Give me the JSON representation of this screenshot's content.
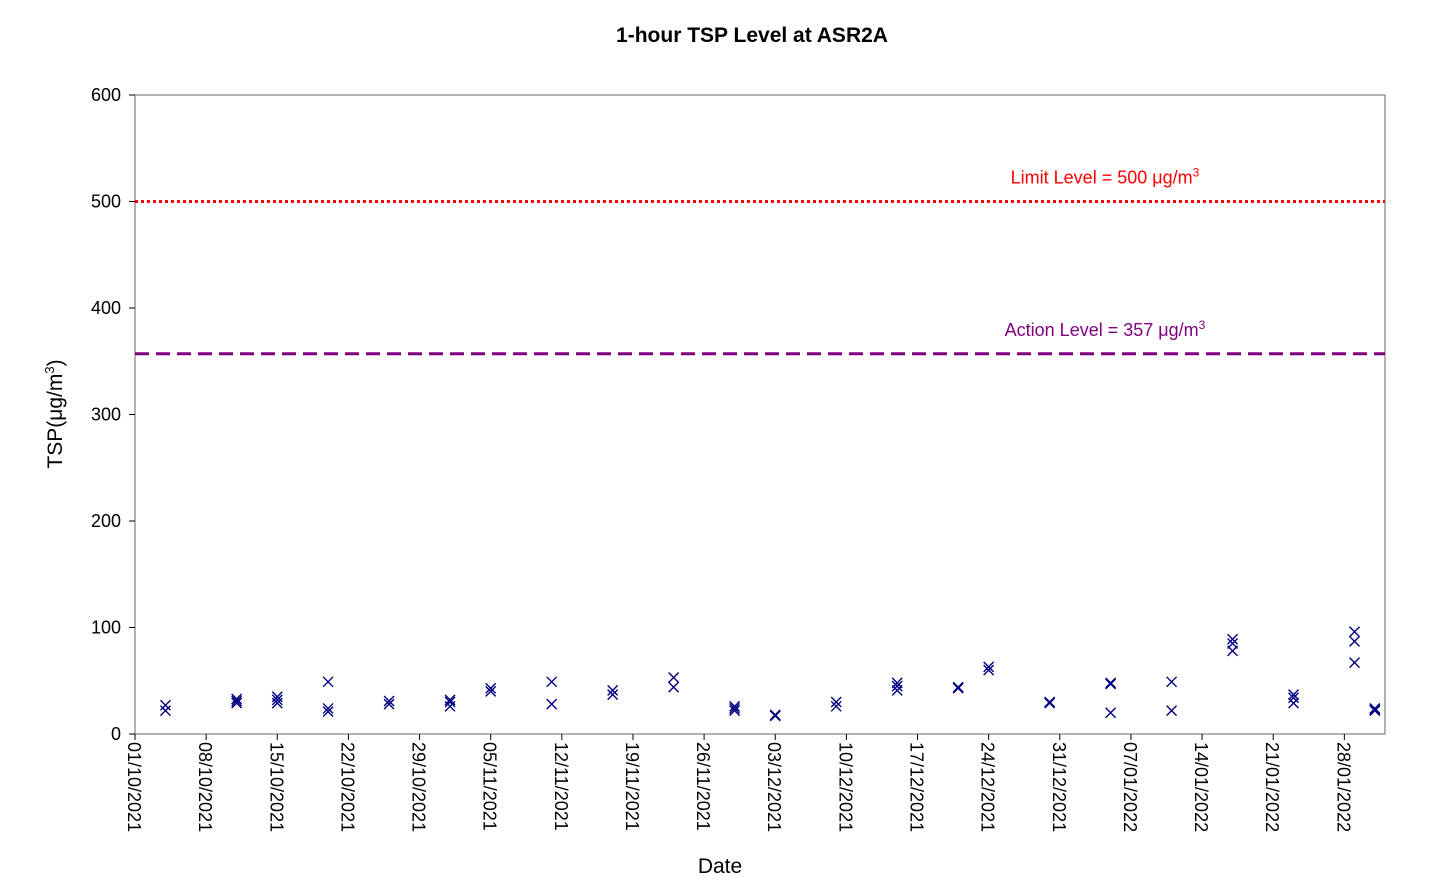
{
  "chart_data": {
    "type": "scatter",
    "title": "1-hour TSP Level at ASR2A",
    "xlabel": "Date",
    "ylabel_main": "TSP(",
    "ylabel_unit": "μg/m",
    "ylabel_sup": "3",
    "ylabel_close": ")",
    "xlim": [
      "2021-10-01",
      "2022-01-31"
    ],
    "ylim": [
      0,
      600
    ],
    "yticks": [
      0,
      100,
      200,
      300,
      400,
      500,
      600
    ],
    "xticks": [
      "01/10/2021",
      "08/10/2021",
      "15/10/2021",
      "22/10/2021",
      "29/10/2021",
      "05/11/2021",
      "12/11/2021",
      "19/11/2021",
      "26/11/2021",
      "03/12/2021",
      "10/12/2021",
      "17/12/2021",
      "24/12/2021",
      "31/12/2021",
      "07/01/2022",
      "14/01/2022",
      "21/01/2022",
      "28/01/2022"
    ],
    "grid": false,
    "reference_lines": [
      {
        "name": "limit",
        "label": "Limit Level = 500 ",
        "unit": "μg/m",
        "sup": "3",
        "value": 500,
        "color": "#ff0000",
        "style": "dotted"
      },
      {
        "name": "action",
        "label": "Action Level = 357 ",
        "unit": "μg/m",
        "sup": "3",
        "value": 357,
        "color": "#800080",
        "style": "dashed"
      }
    ],
    "marker_color": "#000080",
    "points": [
      [
        "2021-10-04",
        27
      ],
      [
        "2021-10-04",
        22
      ],
      [
        "2021-10-11",
        33
      ],
      [
        "2021-10-11",
        31
      ],
      [
        "2021-10-11",
        29
      ],
      [
        "2021-10-15",
        35
      ],
      [
        "2021-10-15",
        32
      ],
      [
        "2021-10-15",
        29
      ],
      [
        "2021-10-20",
        49
      ],
      [
        "2021-10-20",
        24
      ],
      [
        "2021-10-20",
        21
      ],
      [
        "2021-10-26",
        31
      ],
      [
        "2021-10-26",
        28
      ],
      [
        "2021-11-01",
        32
      ],
      [
        "2021-11-01",
        30
      ],
      [
        "2021-11-01",
        26
      ],
      [
        "2021-11-05",
        43
      ],
      [
        "2021-11-05",
        40
      ],
      [
        "2021-11-11",
        49
      ],
      [
        "2021-11-11",
        28
      ],
      [
        "2021-11-17",
        41
      ],
      [
        "2021-11-17",
        37
      ],
      [
        "2021-11-23",
        53
      ],
      [
        "2021-11-23",
        44
      ],
      [
        "2021-11-29",
        26
      ],
      [
        "2021-11-29",
        24
      ],
      [
        "2021-11-29",
        22
      ],
      [
        "2021-12-03",
        18
      ],
      [
        "2021-12-03",
        17
      ],
      [
        "2021-12-09",
        30
      ],
      [
        "2021-12-09",
        26
      ],
      [
        "2021-12-15",
        48
      ],
      [
        "2021-12-15",
        45
      ],
      [
        "2021-12-15",
        41
      ],
      [
        "2021-12-21",
        44
      ],
      [
        "2021-12-21",
        43
      ],
      [
        "2021-12-24",
        63
      ],
      [
        "2021-12-24",
        60
      ],
      [
        "2021-12-30",
        30
      ],
      [
        "2021-12-30",
        29
      ],
      [
        "2022-01-05",
        48
      ],
      [
        "2022-01-05",
        47
      ],
      [
        "2022-01-05",
        20
      ],
      [
        "2022-01-11",
        49
      ],
      [
        "2022-01-11",
        22
      ],
      [
        "2022-01-17",
        89
      ],
      [
        "2022-01-17",
        85
      ],
      [
        "2022-01-17",
        78
      ],
      [
        "2022-01-23",
        37
      ],
      [
        "2022-01-23",
        34
      ],
      [
        "2022-01-23",
        29
      ],
      [
        "2022-01-29",
        96
      ],
      [
        "2022-01-29",
        87
      ],
      [
        "2022-01-29",
        67
      ],
      [
        "2022-01-31",
        24
      ],
      [
        "2022-01-31",
        23
      ],
      [
        "2022-01-31",
        22
      ]
    ]
  }
}
